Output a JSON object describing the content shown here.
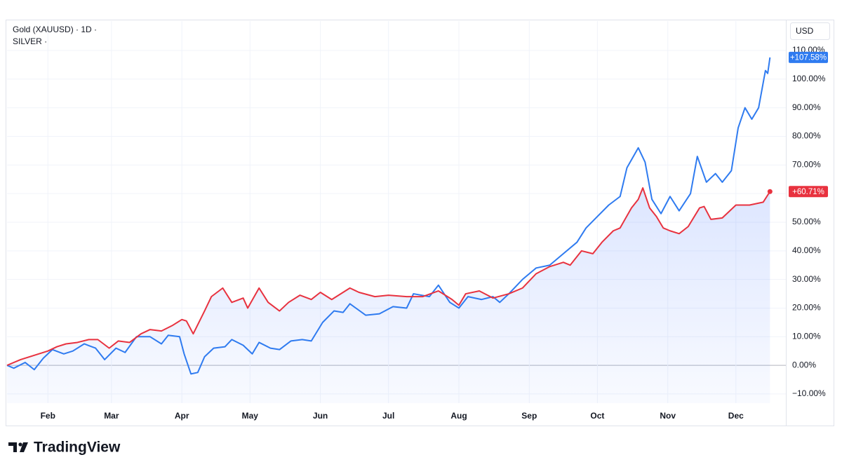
{
  "chart_data": {
    "type": "line",
    "currency_label": "USD",
    "series": [
      {
        "name": "Gold (XAUUSD) · 1D ·",
        "color": "#e8323f",
        "area": true,
        "x": [
          14,
          20,
          26,
          32,
          36,
          40,
          45,
          50,
          54,
          59,
          63,
          68,
          73,
          77,
          82,
          87,
          91,
          93,
          96,
          101,
          104,
          109,
          113,
          118,
          120,
          125,
          129,
          134,
          138,
          143,
          148,
          152,
          157,
          165,
          169,
          176,
          182,
          190,
          197,
          204,
          210,
          213,
          216,
          222,
          228,
          235,
          241,
          247,
          253,
          259,
          262,
          267,
          272,
          276,
          281,
          284,
          289,
          292,
          294,
          297,
          300,
          303,
          306,
          310,
          314,
          319,
          321,
          324,
          329,
          335,
          341,
          347,
          350
        ],
        "values": [
          0,
          2,
          3.5,
          5,
          6.5,
          7.5,
          8,
          9,
          9,
          6,
          8.5,
          8,
          11,
          12.5,
          12,
          14,
          16,
          15.5,
          11,
          19,
          24,
          27,
          22,
          23.5,
          20,
          27,
          22,
          19,
          22,
          24.5,
          23,
          25.5,
          23,
          27,
          25.5,
          24,
          24.5,
          24,
          24,
          26,
          23,
          21,
          25,
          26,
          23.5,
          25,
          27,
          32,
          34.5,
          36,
          35,
          40,
          39,
          43,
          47,
          48,
          55,
          58,
          62,
          55,
          52,
          48,
          47,
          46,
          48.5,
          55,
          55.5,
          51,
          51.5,
          56,
          56,
          57,
          60.71
        ],
        "value_labels": [
          null,
          null,
          null,
          null,
          null,
          null,
          null,
          null,
          null,
          null,
          null,
          null,
          null,
          null,
          null,
          null,
          null,
          null,
          null,
          null,
          null,
          null,
          null,
          null,
          null,
          null,
          null,
          null,
          null,
          null,
          null,
          null,
          null,
          null,
          null,
          null,
          null,
          null,
          null,
          null,
          null,
          null,
          null,
          null,
          null,
          null,
          null,
          null,
          null,
          null,
          null,
          null,
          null,
          null,
          null,
          null,
          null,
          null,
          null,
          null,
          null,
          null,
          null,
          null,
          null,
          null,
          null,
          null,
          null,
          null,
          null,
          null,
          "+60.71%"
        ]
      },
      {
        "name": "SILVER ·",
        "color": "#2f7bf0",
        "area": false,
        "x": [
          14,
          17,
          22,
          26,
          30,
          34,
          39,
          43,
          48,
          53,
          57,
          62,
          66,
          71,
          77,
          82,
          85,
          90,
          92,
          95,
          98,
          101,
          105,
          110,
          113,
          118,
          122,
          125,
          130,
          134,
          139,
          144,
          148,
          153,
          158,
          162,
          165,
          172,
          178,
          184,
          190,
          193,
          200,
          204,
          209,
          213,
          217,
          223,
          228,
          231,
          235,
          241,
          247,
          253,
          259,
          265,
          269,
          274,
          279,
          284,
          287,
          292,
          295,
          298,
          302,
          306,
          310,
          315,
          318,
          322,
          326,
          329,
          333,
          336,
          339,
          342,
          345,
          348,
          349,
          350
        ],
        "values": [
          0,
          -1,
          1,
          -1.5,
          2.5,
          5.5,
          4,
          5,
          7.5,
          6,
          2,
          6,
          4.5,
          10,
          10,
          7.5,
          10.5,
          10,
          4,
          -3,
          -2.5,
          3,
          6,
          6.5,
          9,
          7,
          4,
          8,
          6,
          5.5,
          8.5,
          9,
          8.5,
          15,
          19,
          18.5,
          21.5,
          17.5,
          18,
          20.5,
          20,
          25,
          24,
          28,
          22,
          20,
          24,
          23,
          24,
          22,
          25,
          30,
          34,
          35,
          39,
          43,
          48,
          52,
          56,
          59,
          69,
          76,
          71,
          58,
          53,
          59,
          54,
          60,
          73,
          64,
          67,
          64,
          68,
          83,
          90,
          86,
          90,
          103,
          102,
          107.58
        ],
        "value_labels": [
          null,
          null,
          null,
          null,
          null,
          null,
          null,
          null,
          null,
          null,
          null,
          null,
          null,
          null,
          null,
          null,
          null,
          null,
          null,
          null,
          null,
          null,
          null,
          null,
          null,
          null,
          null,
          null,
          null,
          null,
          null,
          null,
          null,
          null,
          null,
          null,
          null,
          null,
          null,
          null,
          null,
          null,
          null,
          null,
          null,
          null,
          null,
          null,
          null,
          null,
          null,
          null,
          null,
          null,
          null,
          null,
          null,
          null,
          null,
          null,
          null,
          null,
          null,
          null,
          null,
          null,
          null,
          null,
          null,
          null,
          null,
          null,
          null,
          null,
          null,
          null,
          null,
          null,
          null,
          "+107.58%"
        ]
      }
    ],
    "xlim": [
      14,
      357
    ],
    "xticks": [
      {
        "value": 32,
        "label": "Feb"
      },
      {
        "value": 60,
        "label": "Mar"
      },
      {
        "value": 91,
        "label": "Apr"
      },
      {
        "value": 121,
        "label": "May"
      },
      {
        "value": 152,
        "label": "Jun"
      },
      {
        "value": 182,
        "label": "Jul"
      },
      {
        "value": 213,
        "label": "Aug"
      },
      {
        "value": 244,
        "label": "Sep"
      },
      {
        "value": 274,
        "label": "Oct"
      },
      {
        "value": 305,
        "label": "Nov"
      },
      {
        "value": 335,
        "label": "Dec"
      }
    ],
    "ylim": [
      -13.2,
      120.3
    ],
    "yticks": [
      {
        "value": -10,
        "label": "−10.00%"
      },
      {
        "value": 0,
        "label": "0.00%"
      },
      {
        "value": 10,
        "label": "10.00%"
      },
      {
        "value": 20,
        "label": "20.00%"
      },
      {
        "value": 30,
        "label": "30.00%"
      },
      {
        "value": 40,
        "label": "40.00%"
      },
      {
        "value": 50,
        "label": "50.00%"
      },
      {
        "value": 60,
        "label": "60.00%"
      },
      {
        "value": 70,
        "label": "70.00%"
      },
      {
        "value": 80,
        "label": "80.00%"
      },
      {
        "value": 90,
        "label": "90.00%"
      },
      {
        "value": 100,
        "label": "100.00%"
      },
      {
        "value": 110,
        "label": "110.00%"
      }
    ],
    "grid": true
  },
  "watermark": "TradingView"
}
